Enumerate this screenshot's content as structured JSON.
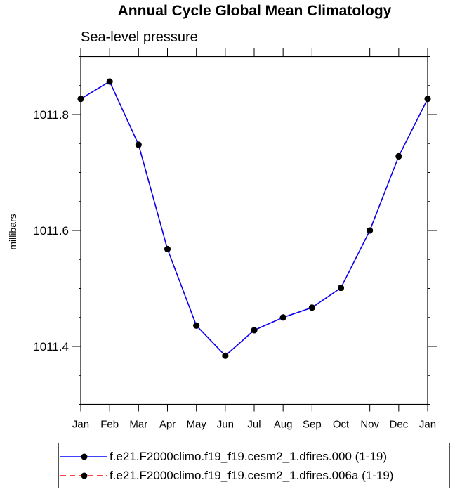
{
  "chart_data": {
    "type": "line",
    "title": "Annual Cycle Global Mean Climatology",
    "subtitle": "Sea-level pressure",
    "xlabel": "",
    "ylabel": "millibars",
    "categories": [
      "Jan",
      "Feb",
      "Mar",
      "Apr",
      "May",
      "Jun",
      "Jul",
      "Aug",
      "Sep",
      "Oct",
      "Nov",
      "Dec",
      "Jan"
    ],
    "ylim": [
      1011.3,
      1011.9
    ],
    "yticks": [
      1011.4,
      1011.6,
      1011.8
    ],
    "ytick_labels": [
      "1011.4",
      "1011.6",
      "1011.8"
    ],
    "grid": false,
    "legend_placement": "bottom",
    "series": [
      {
        "name": "f.e21.F2000climo.f19_f19.cesm2_1.dfires.006a (1-19)",
        "color": "#ff0000",
        "style": "dashed",
        "values": [
          1011.827,
          1011.857,
          1011.748,
          1011.568,
          1011.436,
          1011.384,
          1011.428,
          1011.45,
          1011.467,
          1011.501,
          1011.6,
          1011.728,
          1011.827
        ]
      },
      {
        "name": "f.e21.F2000climo.f19_f19.cesm2_1.dfires.000 (1-19)",
        "color": "#0000ff",
        "style": "solid",
        "values": [
          1011.827,
          1011.857,
          1011.748,
          1011.568,
          1011.436,
          1011.384,
          1011.428,
          1011.45,
          1011.467,
          1011.501,
          1011.6,
          1011.728,
          1011.827
        ]
      }
    ]
  }
}
